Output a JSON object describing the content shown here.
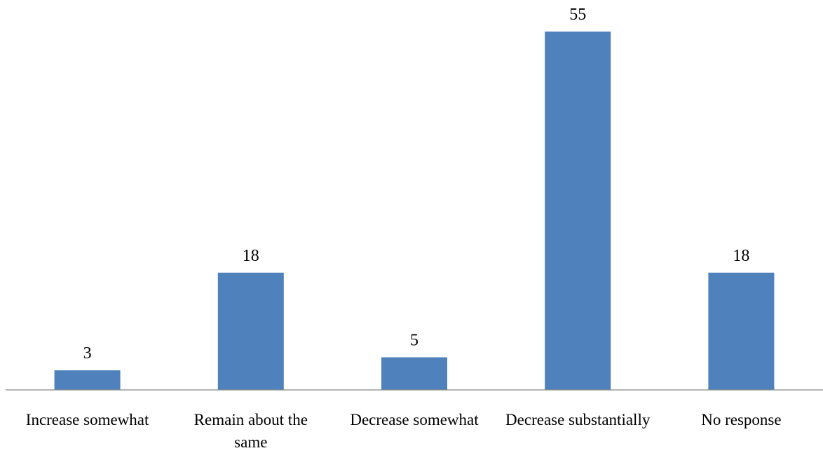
{
  "chart_data": {
    "type": "bar",
    "categories": [
      [
        "Increase somewhat"
      ],
      [
        "Remain about the",
        "same"
      ],
      [
        "Decrease somewhat"
      ],
      [
        "Decrease substantially"
      ],
      [
        "No response"
      ]
    ],
    "values": [
      3,
      18,
      5,
      55,
      18
    ],
    "data_labels": [
      "3",
      "18",
      "5",
      "55",
      "18"
    ],
    "title": "",
    "xlabel": "",
    "ylabel": "",
    "ylim": [
      0,
      55
    ],
    "grid": false,
    "legend": "none",
    "bar_color": "#4F81BD"
  }
}
